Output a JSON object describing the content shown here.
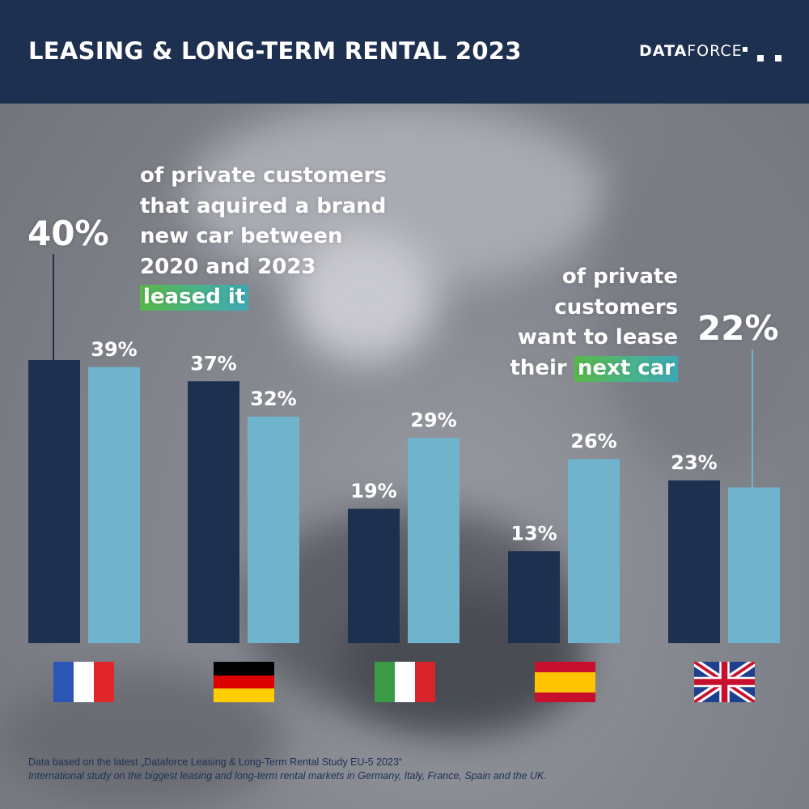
{
  "header": {
    "title": "LEASING & LONG-TERM RENTAL 2023",
    "logo_bold": "DATA",
    "logo_light": "FORCE"
  },
  "callouts": {
    "left": {
      "big_value": "40%",
      "lines": [
        "of private customers",
        "that aquired a brand",
        "new car between",
        "2020 and 2023"
      ],
      "highlight": "leased it"
    },
    "right": {
      "big_value": "22%",
      "lines": [
        "of private",
        "customers",
        "want to lease"
      ],
      "last_prefix": "their",
      "highlight": "next car"
    }
  },
  "flags": [
    {
      "name": "france-flag",
      "colors": [
        "#2b56b6",
        "#ffffff",
        "#e0262b"
      ]
    },
    {
      "name": "germany-flag",
      "colors": [
        "#000000",
        "#dd0000",
        "#ffce00"
      ]
    },
    {
      "name": "italy-flag",
      "colors": [
        "#3a9a45",
        "#ffffff",
        "#d8252b"
      ]
    },
    {
      "name": "spain-flag",
      "colors": [
        "#c8102e",
        "#ffc400",
        "#c8102e"
      ]
    },
    {
      "name": "uk-flag",
      "colors": [
        "#1f3f8f",
        "#ffffff",
        "#c8102e"
      ]
    }
  ],
  "chart_data": {
    "type": "bar",
    "categories": [
      "France",
      "Germany",
      "Italy",
      "Spain",
      "UK"
    ],
    "series": [
      {
        "values": [
          40,
          37,
          19,
          13,
          23
        ],
        "color": "#1e3050"
      },
      {
        "values": [
          39,
          32,
          29,
          26,
          22
        ],
        "color": "#6fb3cc"
      }
    ],
    "data_labels": [
      [
        "40%",
        "37%",
        "19%",
        "13%",
        "23%"
      ],
      [
        "39%",
        "32%",
        "29%",
        "26%",
        "22%"
      ]
    ],
    "ylim": [
      0,
      40
    ]
  },
  "footer": {
    "line1": "Data based on the latest „Dataforce Leasing & Long-Term Rental Study EU-5 2023“",
    "line2": "International study on the biggest leasing and long-term rental markets in Germany, Italy, France, Spain and the UK."
  }
}
